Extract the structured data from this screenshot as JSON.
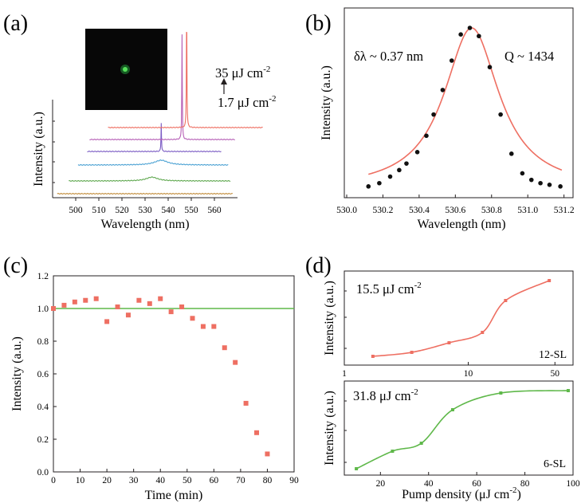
{
  "figure": {
    "panel_labels": [
      "(a)",
      "(b)",
      "(c)",
      "(d)"
    ]
  },
  "chart_data": [
    {
      "panel": "(a)",
      "type": "line",
      "xlabel": "Wavelength (nm)",
      "ylabel": "Intensity (a.u.)",
      "x_ticks": [
        "500",
        "510",
        "520",
        "530",
        "540",
        "550",
        "560"
      ],
      "xlim": [
        490,
        570
      ],
      "stacked_offset": true,
      "grid": false,
      "inset": "dark image with green bright spot",
      "annotations": {
        "top": "35 μJ cm",
        "top_sup": "-2",
        "bottom": "1.7 μJ cm",
        "bottom_sup": "-2"
      },
      "series": [
        {
          "color": "#c28c3a",
          "x_start": 492,
          "x_end": 568,
          "peak_center": 533,
          "peak_height": 0.0,
          "peak_width": 4
        },
        {
          "color": "#5fa84f",
          "x_start": 497,
          "x_end": 567,
          "peak_center": 533,
          "peak_height": 0.04,
          "peak_width": 6
        },
        {
          "color": "#4aa1d3",
          "x_start": 501,
          "x_end": 566,
          "peak_center": 537,
          "peak_height": 0.05,
          "peak_width": 7
        },
        {
          "color": "#7b5cc4",
          "x_start": 505,
          "x_end": 563,
          "peak_center": 537,
          "peak_height": 0.3,
          "peak_width": 0.25
        },
        {
          "color": "#b65fb6",
          "x_start": 506,
          "x_end": 569,
          "peak_center": 546,
          "peak_height": 1.1,
          "peak_width": 0.25
        },
        {
          "color": "#ee6f62",
          "x_start": 514,
          "x_end": 581,
          "peak_center": 548,
          "peak_height": 1.3,
          "peak_width": 0.25
        }
      ]
    },
    {
      "panel": "(b)",
      "type": "scatter",
      "xlabel": "Wavelength (nm)",
      "ylabel": "Intensity (a.u.)",
      "x_ticks": [
        "530.0",
        "530.2",
        "530.4",
        "530.6",
        "530.8",
        "531.0",
        "531.2"
      ],
      "xlim": [
        530.0,
        531.25
      ],
      "ylim": [
        0,
        1.05
      ],
      "grid": false,
      "annotations": {
        "linewidth": "δλ ~ 0.37 nm",
        "q": "Q ~ 1434"
      },
      "fit": {
        "type": "lorentzian",
        "center": 530.69,
        "fwhm": 0.37,
        "baseline": 0.0,
        "amplitude": 1.0,
        "color": "#ee6f62"
      },
      "points": {
        "x": [
          530.12,
          530.18,
          530.24,
          530.29,
          530.33,
          530.39,
          530.44,
          530.48,
          530.53,
          530.58,
          530.63,
          530.68,
          530.73,
          530.79,
          530.85,
          530.91,
          530.97,
          531.02,
          531.07,
          531.12,
          531.18
        ],
        "y": [
          0.03,
          0.05,
          0.09,
          0.13,
          0.17,
          0.24,
          0.34,
          0.47,
          0.62,
          0.8,
          0.96,
          1.0,
          0.95,
          0.76,
          0.47,
          0.23,
          0.11,
          0.07,
          0.05,
          0.04,
          0.03
        ]
      }
    },
    {
      "panel": "(c)",
      "type": "scatter",
      "xlabel": "Time (min)",
      "ylabel": "Intensity (a.u.)",
      "x_ticks": [
        "0",
        "10",
        "20",
        "30",
        "40",
        "50",
        "60",
        "70",
        "80",
        "90"
      ],
      "y_ticks": [
        "0.0",
        "0.2",
        "0.4",
        "0.6",
        "0.8",
        "1.0",
        "1.2"
      ],
      "xlim": [
        0,
        90
      ],
      "ylim": [
        0,
        1.2
      ],
      "grid": false,
      "reference_line": {
        "y": 1.0,
        "color": "#5fb84a"
      },
      "points": {
        "color": "#ee6f62",
        "x": [
          0,
          4,
          8,
          12,
          16,
          20,
          24,
          28,
          32,
          36,
          40,
          44,
          48,
          52,
          56,
          60,
          64,
          68,
          72,
          76,
          80
        ],
        "y": [
          1.0,
          1.02,
          1.04,
          1.05,
          1.06,
          0.92,
          1.01,
          0.96,
          1.05,
          1.03,
          1.06,
          0.98,
          1.01,
          0.94,
          0.89,
          0.89,
          0.76,
          0.67,
          0.42,
          0.24,
          0.11
        ]
      }
    },
    {
      "panel": "(d)",
      "type": "scatter",
      "subpanel": "top",
      "ylabel": "Intensity (a.u.)",
      "xscale": "log",
      "x_ticks": [
        "1",
        "10",
        "50"
      ],
      "xlim": [
        1,
        70
      ],
      "ylim": [
        0,
        1.1
      ],
      "annotations": {
        "threshold": "15.5 μJ cm",
        "threshold_sup": "-2",
        "sample": "12-SL"
      },
      "fit_color": "#ee6f62",
      "points": {
        "x": [
          1.7,
          3.5,
          7,
          13,
          20,
          45
        ],
        "y": [
          0.05,
          0.1,
          0.22,
          0.35,
          0.75,
          1.0
        ]
      }
    },
    {
      "panel": "(d)",
      "type": "scatter",
      "subpanel": "bottom",
      "xlabel": "Pump density (μJ cm",
      "xlabel_sup": "-2",
      "xlabel_end": ")",
      "ylabel": "Intensity (a.u.)",
      "x_ticks": [
        "20",
        "40",
        "60",
        "80",
        "100"
      ],
      "xlim": [
        5,
        100
      ],
      "ylim": [
        0,
        1.1
      ],
      "annotations": {
        "threshold": "31.8 μJ cm",
        "threshold_sup": "-2",
        "sample": "6-SL"
      },
      "fit_color": "#5fb84a",
      "points": {
        "x": [
          10,
          25,
          37,
          50,
          70,
          98
        ],
        "y": [
          0.02,
          0.24,
          0.34,
          0.76,
          0.97,
          1.0
        ]
      }
    }
  ]
}
